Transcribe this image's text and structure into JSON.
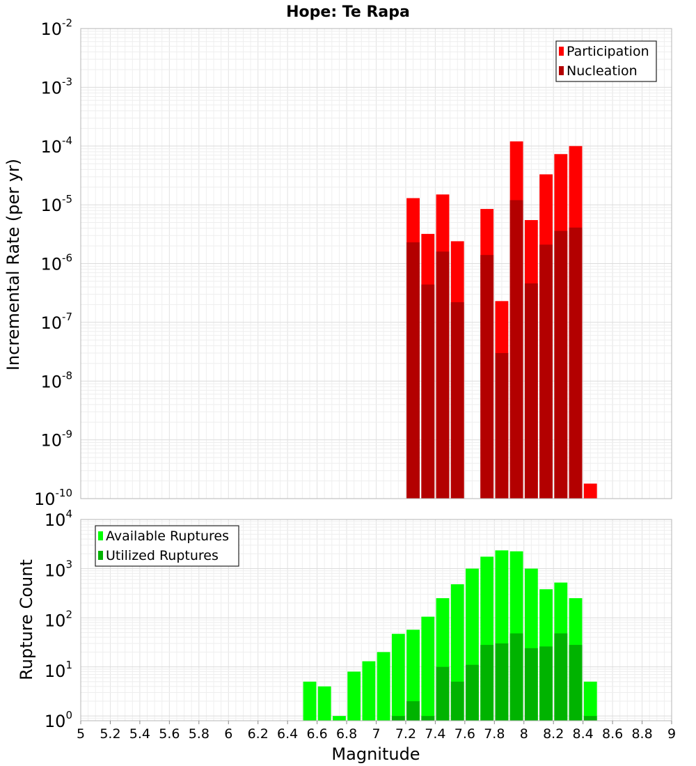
{
  "chart_data": [
    {
      "type": "bar",
      "title": "Hope: Te Rapa",
      "xlabel": "",
      "ylabel": "Incremental Rate (per yr)",
      "yscale": "log",
      "xlim": [
        5,
        9
      ],
      "ylim": [
        1e-10,
        0.01
      ],
      "legend": "top-right",
      "grid": true,
      "bar_width": 0.1,
      "x": [
        7.25,
        7.35,
        7.45,
        7.55,
        7.75,
        7.85,
        7.95,
        8.05,
        8.15,
        8.25,
        8.35,
        8.45
      ],
      "series": [
        {
          "name": "Participation",
          "color": "#ff0000",
          "values": [
            1.3e-05,
            3.2e-06,
            1.5e-05,
            2.4e-06,
            8.5e-06,
            2.3e-07,
            0.00012,
            5.5e-06,
            3.3e-05,
            7.3e-05,
            0.0001,
            1.8e-10
          ]
        },
        {
          "name": "Nucleation",
          "color": "#b30000",
          "values": [
            2.3e-06,
            4.4e-07,
            1.6e-06,
            2.2e-07,
            1.4e-06,
            3e-08,
            1.2e-05,
            4.6e-07,
            2.1e-06,
            3.6e-06,
            4.1e-06,
            null
          ]
        }
      ]
    },
    {
      "type": "bar",
      "title": "",
      "xlabel": "Magnitude",
      "ylabel": "Rupture Count",
      "yscale": "log",
      "xlim": [
        5,
        9
      ],
      "ylim": [
        0.8,
        10000
      ],
      "legend": "top-left",
      "grid": true,
      "bar_width": 0.1,
      "x": [
        6.55,
        6.65,
        6.75,
        6.85,
        6.95,
        7.05,
        7.15,
        7.25,
        7.35,
        7.45,
        7.55,
        7.65,
        7.75,
        7.85,
        7.95,
        8.05,
        8.15,
        8.25,
        8.35,
        8.45
      ],
      "series": [
        {
          "name": "Available Ruptures",
          "color": "#00ff00",
          "values": [
            5,
            4,
            1,
            8,
            13,
            20,
            47,
            57,
            105,
            250,
            480,
            1000,
            1750,
            2350,
            2250,
            1000,
            380,
            520,
            250,
            5
          ]
        },
        {
          "name": "Utilized Ruptures",
          "color": "#00b300",
          "values": [
            null,
            null,
            null,
            null,
            null,
            null,
            1,
            2,
            1,
            10,
            5,
            11,
            28,
            30,
            48,
            24,
            26,
            48,
            28,
            1
          ]
        }
      ]
    }
  ],
  "x_ticks": [
    "5",
    "5.2",
    "5.4",
    "5.6",
    "5.8",
    "6",
    "6.2",
    "6.4",
    "6.6",
    "6.8",
    "7",
    "7.2",
    "7.4",
    "7.6",
    "7.8",
    "8",
    "8.2",
    "8.4",
    "8.6",
    "8.8",
    "9"
  ],
  "top_y_ticks": [
    {
      "base": "10",
      "exp": "-2"
    },
    {
      "base": "10",
      "exp": "-3"
    },
    {
      "base": "10",
      "exp": "-4"
    },
    {
      "base": "10",
      "exp": "-5"
    },
    {
      "base": "10",
      "exp": "-6"
    },
    {
      "base": "10",
      "exp": "-7"
    },
    {
      "base": "10",
      "exp": "-8"
    },
    {
      "base": "10",
      "exp": "-9"
    },
    {
      "base": "10",
      "exp": "-10"
    }
  ],
  "bottom_y_ticks": [
    {
      "base": "10",
      "exp": "4"
    },
    {
      "base": "10",
      "exp": "3"
    },
    {
      "base": "10",
      "exp": "2"
    },
    {
      "base": "10",
      "exp": "1"
    },
    {
      "base": "10",
      "exp": "0"
    }
  ]
}
